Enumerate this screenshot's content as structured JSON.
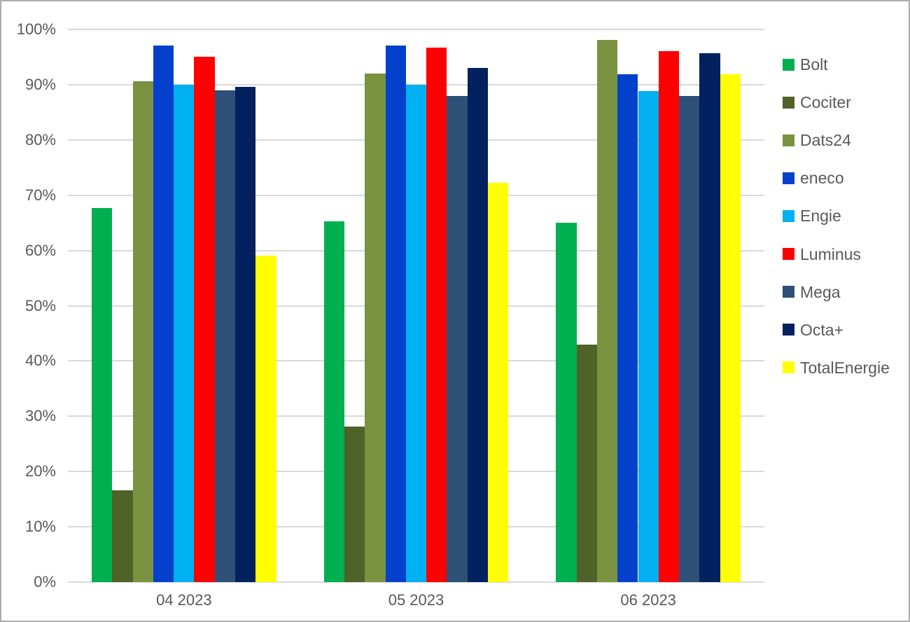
{
  "chart_data": {
    "type": "bar",
    "title": "",
    "xlabel": "",
    "ylabel": "",
    "categories": [
      "04 2023",
      "05 2023",
      "06 2023"
    ],
    "series": [
      {
        "name": "Bolt",
        "color": "#00AF50",
        "values": [
          67.7,
          65.3,
          65.0
        ]
      },
      {
        "name": "Cociter",
        "color": "#4F6228",
        "values": [
          16.6,
          28.1,
          43.0
        ]
      },
      {
        "name": "Dats24",
        "color": "#799340",
        "values": [
          90.6,
          92.0,
          98.1
        ]
      },
      {
        "name": "eneco",
        "color": "#0341CD",
        "values": [
          97.1,
          97.1,
          91.9
        ]
      },
      {
        "name": "Engie",
        "color": "#00B0F0",
        "values": [
          90.0,
          90.0,
          88.9
        ]
      },
      {
        "name": "Luminus",
        "color": "#FE0000",
        "values": [
          95.0,
          96.7,
          96.1
        ]
      },
      {
        "name": "Mega",
        "color": "#2E5077",
        "values": [
          89.0,
          87.9,
          87.9
        ]
      },
      {
        "name": "Octa+",
        "color": "#02215E",
        "values": [
          89.6,
          93.0,
          95.7
        ]
      },
      {
        "name": "TotalEnergie",
        "color": "#FFFF00",
        "values": [
          59.1,
          72.3,
          91.9
        ]
      }
    ],
    "ylim": [
      0,
      100
    ],
    "y_tick_step": 10,
    "y_tick_labels": [
      "0%",
      "10%",
      "20%",
      "30%",
      "40%",
      "50%",
      "60%",
      "70%",
      "80%",
      "90%",
      "100%"
    ],
    "grid": true,
    "legend_position": "right",
    "legend_entries": [
      "Bolt",
      "Cociter",
      "Dats24",
      "eneco",
      "Engie",
      "Luminus",
      "Mega",
      "Octa+",
      "TotalEnergie"
    ]
  },
  "colors": {
    "text": "#595959",
    "gridline": "#D9D9D9",
    "axis_line": "#D9D9D9",
    "canvas_border": "#ADADAD",
    "background": "#FFFFFF"
  }
}
